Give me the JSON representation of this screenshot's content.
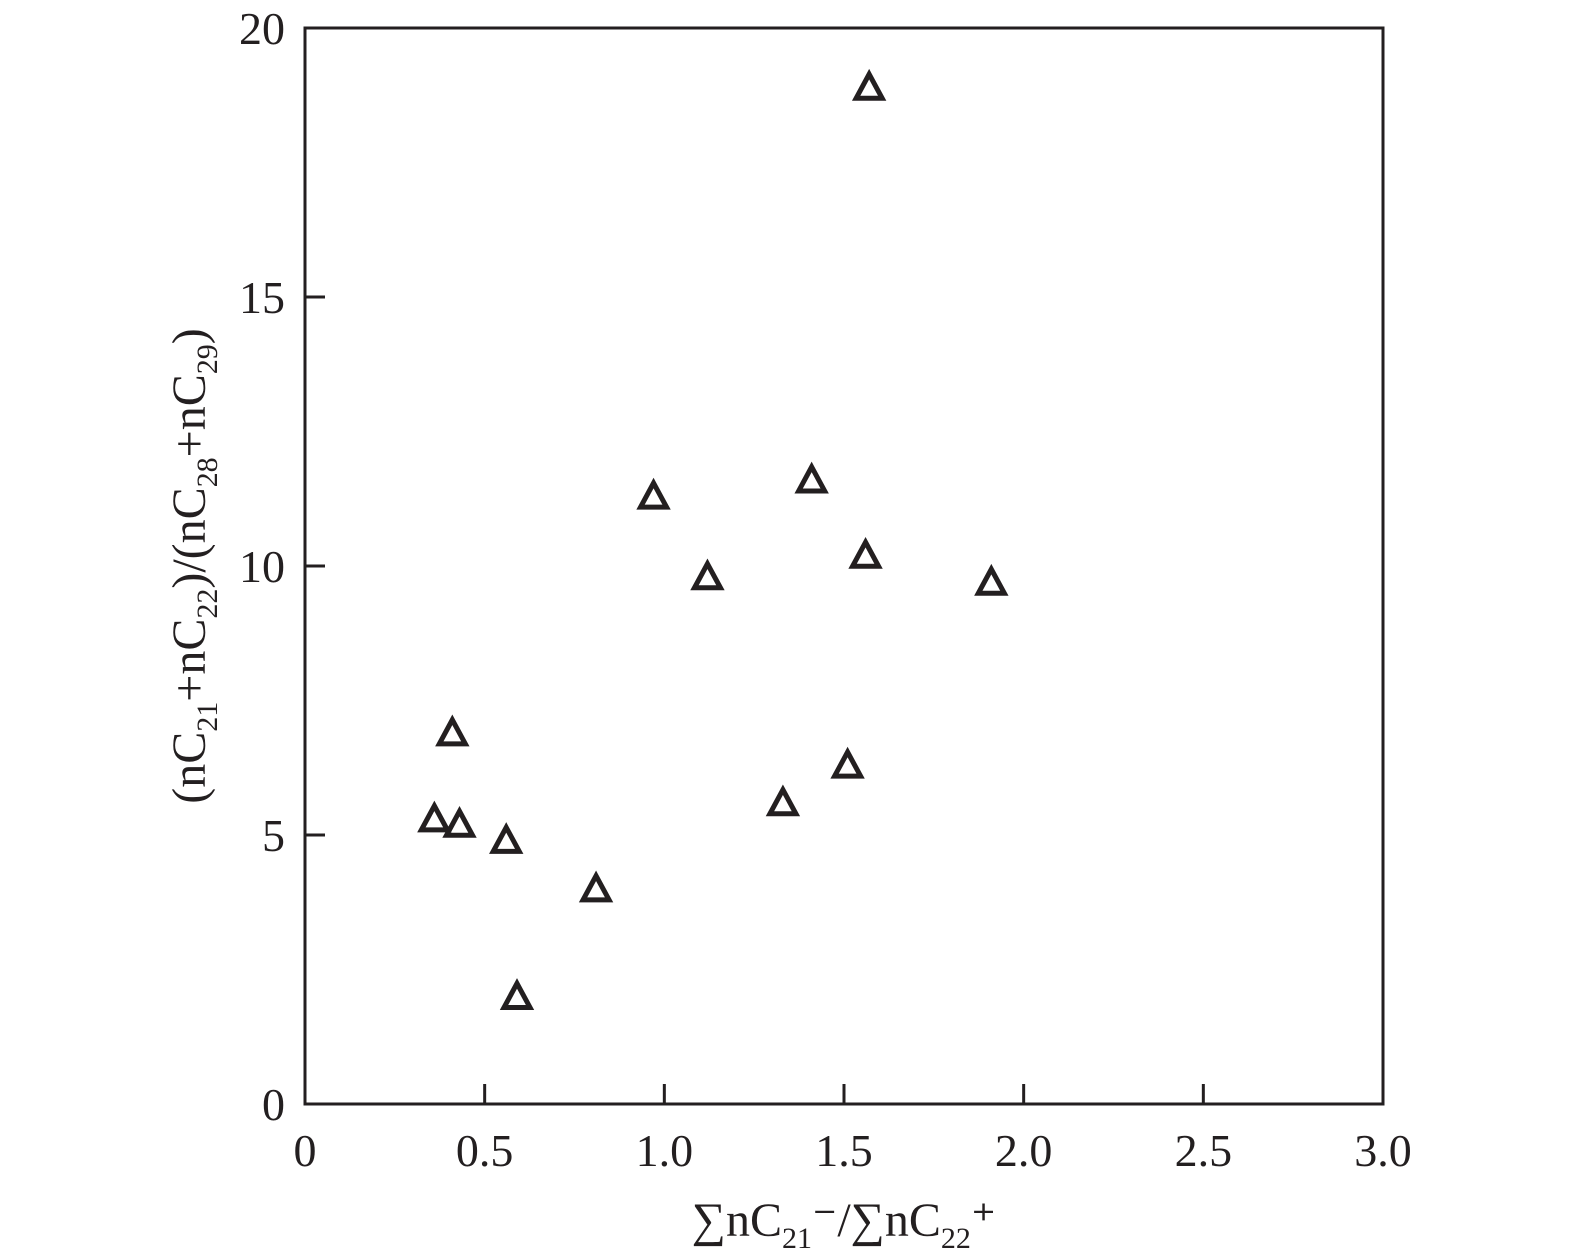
{
  "chart_data": {
    "type": "scatter",
    "xlabel_parts": [
      "∑nC",
      "21",
      "⁻/∑nC",
      "22",
      "⁺"
    ],
    "ylabel_parts": [
      "(nC",
      "21",
      "+nC",
      "22",
      ")/(nC",
      "28",
      "+nC",
      "29",
      ")"
    ],
    "xlim": [
      0,
      3.0
    ],
    "ylim": [
      0,
      20
    ],
    "xticks": [
      0,
      0.5,
      1.0,
      1.5,
      2.0,
      2.5,
      3.0
    ],
    "xtick_labels": [
      "0",
      "0.5",
      "1.0",
      "1.5",
      "2.0",
      "2.5",
      "3.0"
    ],
    "yticks": [
      0,
      5,
      10,
      15,
      20
    ],
    "ytick_labels": [
      "0",
      "5",
      "10",
      "15",
      "20"
    ],
    "grid": false,
    "marker": "open-triangle",
    "marker_color": "#231f20",
    "points": [
      {
        "x": 0.36,
        "y": 5.3
      },
      {
        "x": 0.41,
        "y": 6.9
      },
      {
        "x": 0.43,
        "y": 5.2
      },
      {
        "x": 0.56,
        "y": 4.9
      },
      {
        "x": 0.59,
        "y": 2.0
      },
      {
        "x": 0.81,
        "y": 4.0
      },
      {
        "x": 0.97,
        "y": 11.3
      },
      {
        "x": 1.12,
        "y": 9.8
      },
      {
        "x": 1.33,
        "y": 5.6
      },
      {
        "x": 1.41,
        "y": 11.6
      },
      {
        "x": 1.51,
        "y": 6.3
      },
      {
        "x": 1.56,
        "y": 10.2
      },
      {
        "x": 1.57,
        "y": 18.9
      },
      {
        "x": 1.91,
        "y": 9.7
      }
    ]
  }
}
